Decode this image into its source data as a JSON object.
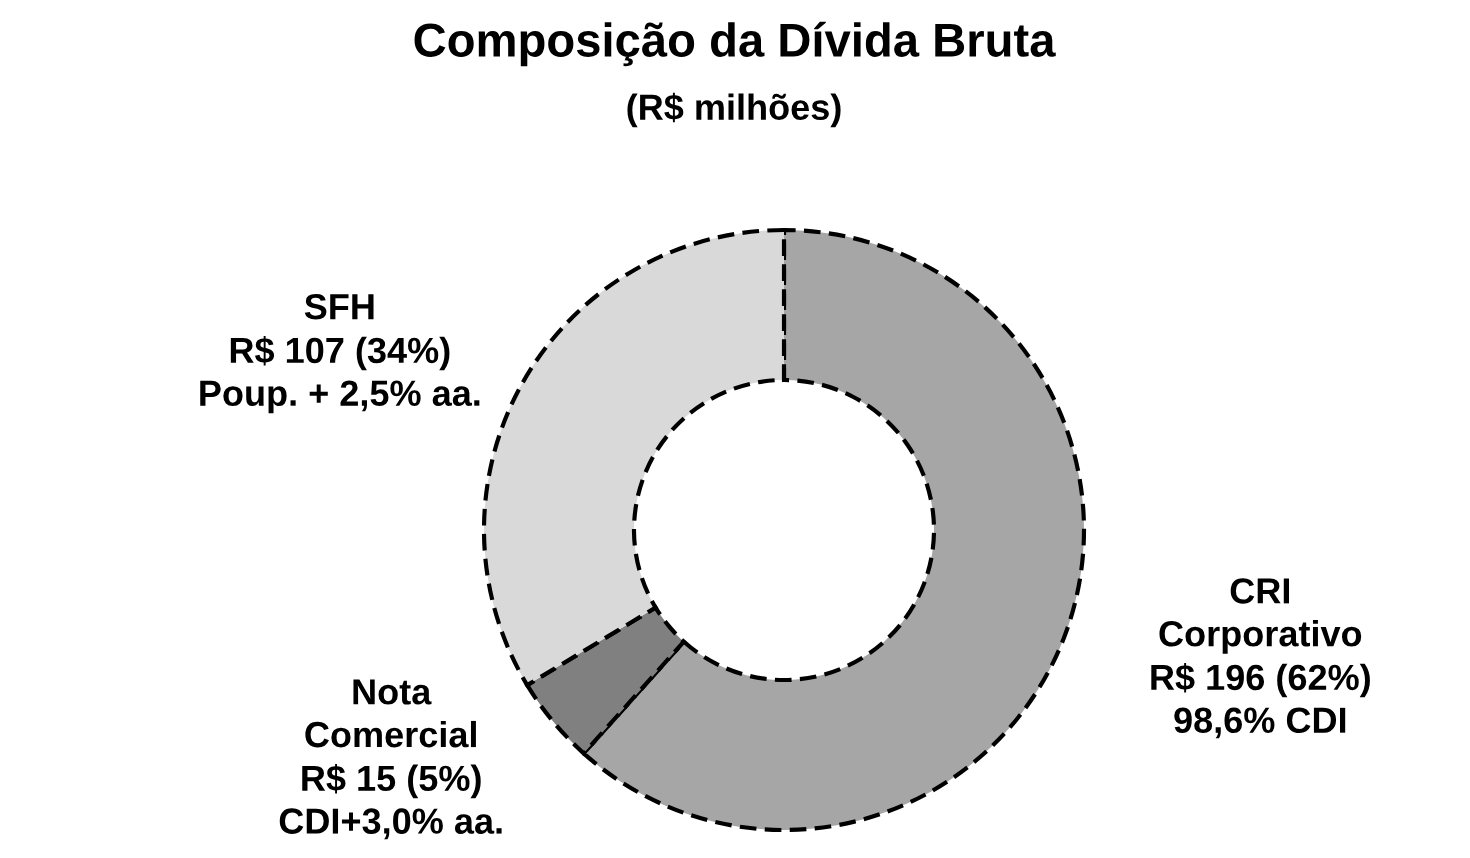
{
  "chart_data": {
    "type": "donut",
    "title": "Composição da Dívida Bruta",
    "subtitle": "(R$ milhões)",
    "categories": [
      "CRI\nCorporativo",
      "Nota\nComercial",
      "SFH"
    ],
    "values": [
      196,
      15,
      107
    ],
    "colors": [
      "#a6a6a6",
      "#808080",
      "#d9d9d9"
    ],
    "value_labels": [
      "R$ 196 (62%)",
      "R$ 15 (5%)",
      "R$ 107 (34%)"
    ],
    "annotations": [
      {
        "text": "98,6% CDI",
        "x": "CRI\nCorporativo"
      },
      {
        "text": "CDI+3,0% aa.",
        "x": "Nota\nComercial"
      },
      {
        "text": "Poup. + 2,5% aa.",
        "x": "SFH"
      }
    ],
    "line_style": "dashed",
    "legend": false
  }
}
